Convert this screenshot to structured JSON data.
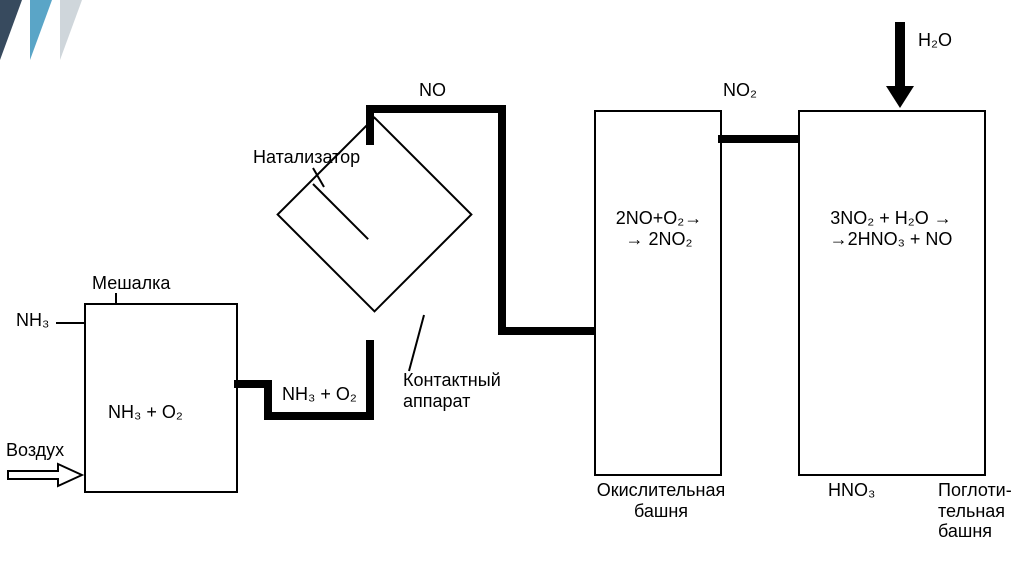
{
  "type": "flowchart",
  "background_color": "#ffffff",
  "stroke_color": "#000000",
  "thick_line_width": 6,
  "thin_line_width": 2,
  "font_family": "Arial",
  "font_size": 18,
  "corner_decoration_colors": [
    "#374a5e",
    "#5aa5c7",
    "#cfd6db"
  ],
  "inputs": {
    "nh3_label": "NH₃",
    "air_label": "Воздух",
    "h2o_label": "H₂O"
  },
  "nodes": {
    "mixer": {
      "title": "Мешалка",
      "content": "NH₃ + O₂"
    },
    "catalyst_diamond": {
      "title": "Натализатор",
      "subtitle": "Контактный\nаппарат"
    },
    "oxidation_tower": {
      "title": "Окислительная\nбашня",
      "content": "2NO+O₂→\n→ 2NO₂"
    },
    "absorption_tower": {
      "title": "Поглоти-\nтельная\nбашня",
      "content": "3NO₂ + H₂O →\n→2HNO₃ + NO"
    }
  },
  "pipes": {
    "mixer_to_diamond_label": "NH₃ + O₂",
    "no_label": "NO",
    "no2_label": "NO₂",
    "hno3_label": "HNO₃"
  }
}
